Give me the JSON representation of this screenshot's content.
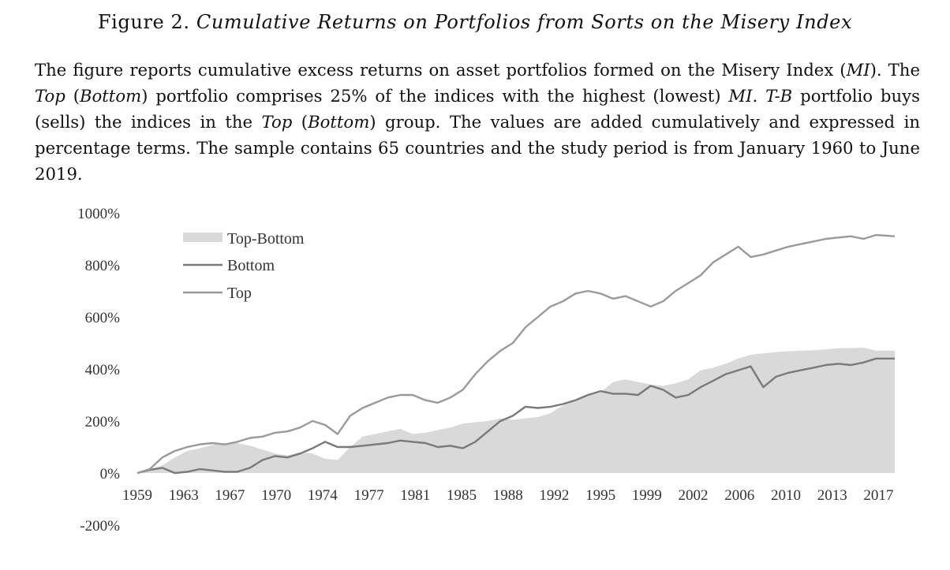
{
  "figure": {
    "label": "Figure 2.",
    "title": "Cumulative Returns on Portfolios from Sorts on the Misery Index"
  },
  "caption": {
    "s1": "The figure reports cumulative excess returns on asset portfolios formed on the Misery Index (",
    "s1_mi": "MI",
    "s1_end": "). The",
    "s2_top": "Top",
    "s2_paren_open": " (",
    "s2_bottom": "Bottom",
    "s2_mid": ") portfolio comprises 25% of the indices with the highest (lowest) ",
    "s2_mi": "MI.",
    "s2_space": " ",
    "s2_tb": "T-B",
    "s2_rest": " portfolio buys (sells) the indices in the ",
    "s2_top2": "Top",
    "s2_paren2": " (",
    "s2_bottom2": "Bottom",
    "s2_end": ") group. The values are added cumulatively and expressed in percentage terms. The sample contains 65 countries and the study period is from January 1960 to June 2019."
  },
  "chart_data": {
    "type": "line",
    "title": "",
    "xlabel": "",
    "ylabel": "",
    "ylim": [
      -200,
      1000
    ],
    "xlim": [
      1959,
      2019.5
    ],
    "y_ticks": [
      "1000%",
      "800%",
      "600%",
      "400%",
      "200%",
      "0%",
      "-200%"
    ],
    "y_tick_values": [
      1000,
      800,
      600,
      400,
      200,
      0,
      -200
    ],
    "x_ticks": [
      "1959",
      "1963",
      "1967",
      "1970",
      "1974",
      "1977",
      "1981",
      "1985",
      "1988",
      "1992",
      "1995",
      "1999",
      "2002",
      "2006",
      "2010",
      "2013",
      "2017"
    ],
    "x_tick_values": [
      1959,
      1962.7,
      1966.4,
      1970.1,
      1973.8,
      1977.5,
      1981.2,
      1984.9,
      1988.6,
      1992.3,
      1996.0,
      1999.7,
      2003.4,
      2007.1,
      2010.8,
      2014.5,
      2018.2
    ],
    "grid": false,
    "legend_position": "top-left",
    "series": [
      {
        "name": "Top-Bottom",
        "style": "area",
        "color": "#d9d9d9",
        "x": [
          1959,
          1960,
          1961,
          1962,
          1963,
          1964,
          1965,
          1966,
          1967,
          1968,
          1969,
          1970,
          1971,
          1972,
          1973,
          1974,
          1975,
          1976,
          1977,
          1978,
          1979,
          1980,
          1981,
          1982,
          1983,
          1984,
          1985,
          1986,
          1987,
          1988,
          1989,
          1990,
          1991,
          1992,
          1993,
          1994,
          1995,
          1996,
          1997,
          1998,
          1999,
          2000,
          2001,
          2002,
          2003,
          2004,
          2005,
          2006,
          2007,
          2008,
          2009,
          2010,
          2011,
          2012,
          2013,
          2014,
          2015,
          2016,
          2017,
          2018,
          2019.5
        ],
        "values": [
          0,
          15,
          30,
          60,
          85,
          95,
          108,
          112,
          115,
          105,
          90,
          75,
          68,
          80,
          75,
          55,
          50,
          100,
          140,
          150,
          160,
          170,
          150,
          155,
          165,
          175,
          190,
          195,
          200,
          210,
          205,
          210,
          215,
          230,
          260,
          280,
          300,
          310,
          350,
          360,
          350,
          340,
          335,
          345,
          360,
          395,
          405,
          420,
          440,
          455,
          460,
          465,
          468,
          470,
          472,
          475,
          480,
          480,
          482,
          470,
          470
        ]
      },
      {
        "name": "Bottom",
        "style": "line",
        "color": "#7a7a7a",
        "x": [
          1959,
          1960,
          1961,
          1962,
          1963,
          1964,
          1965,
          1966,
          1967,
          1968,
          1969,
          1970,
          1971,
          1972,
          1973,
          1974,
          1975,
          1976,
          1977,
          1978,
          1979,
          1980,
          1981,
          1982,
          1983,
          1984,
          1985,
          1986,
          1987,
          1988,
          1989,
          1990,
          1991,
          1992,
          1993,
          1994,
          1995,
          1996,
          1997,
          1998,
          1999,
          2000,
          2001,
          2002,
          2003,
          2004,
          2005,
          2006,
          2007,
          2008,
          2009,
          2010,
          2011,
          2012,
          2013,
          2014,
          2015,
          2016,
          2017,
          2018,
          2019.5
        ],
        "values": [
          0,
          12,
          20,
          0,
          5,
          15,
          10,
          5,
          5,
          20,
          50,
          65,
          60,
          75,
          95,
          120,
          100,
          100,
          105,
          110,
          115,
          125,
          120,
          115,
          100,
          105,
          95,
          120,
          160,
          200,
          220,
          255,
          250,
          255,
          265,
          280,
          300,
          315,
          305,
          305,
          300,
          335,
          320,
          290,
          300,
          330,
          355,
          380,
          395,
          410,
          330,
          370,
          385,
          395,
          405,
          415,
          420,
          415,
          425,
          440,
          440
        ]
      },
      {
        "name": "Top",
        "style": "line",
        "color": "#9a9a9a",
        "x": [
          1959,
          1960,
          1961,
          1962,
          1963,
          1964,
          1965,
          1966,
          1967,
          1968,
          1969,
          1970,
          1971,
          1972,
          1973,
          1974,
          1975,
          1976,
          1977,
          1978,
          1979,
          1980,
          1981,
          1982,
          1983,
          1984,
          1985,
          1986,
          1987,
          1988,
          1989,
          1990,
          1991,
          1992,
          1993,
          1994,
          1995,
          1996,
          1997,
          1998,
          1999,
          2000,
          2001,
          2002,
          2003,
          2004,
          2005,
          2006,
          2007,
          2008,
          2009,
          2010,
          2011,
          2012,
          2013,
          2014,
          2015,
          2016,
          2017,
          2018,
          2019.5
        ],
        "values": [
          0,
          15,
          60,
          85,
          100,
          110,
          115,
          110,
          120,
          135,
          140,
          155,
          160,
          175,
          200,
          185,
          150,
          220,
          250,
          270,
          290,
          300,
          300,
          280,
          270,
          290,
          320,
          380,
          430,
          470,
          500,
          560,
          600,
          640,
          660,
          690,
          700,
          690,
          670,
          680,
          660,
          640,
          660,
          700,
          730,
          760,
          810,
          840,
          870,
          830,
          840,
          855,
          870,
          880,
          890,
          900,
          905,
          910,
          900,
          915,
          910
        ]
      }
    ]
  }
}
